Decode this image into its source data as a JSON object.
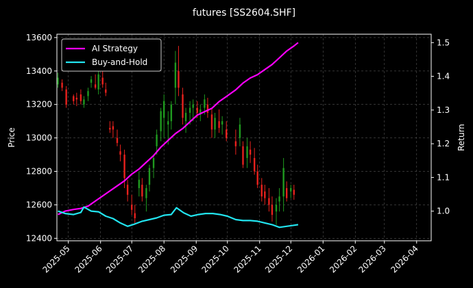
{
  "chart_data": {
    "type": "line",
    "title": "futures [SS2604.SHF]",
    "xlabel": "",
    "ylabel": "Price",
    "ylabel_right": "Return",
    "x_ticks": [
      "2025-05",
      "2025-06",
      "2025-07",
      "2025-08",
      "2025-09",
      "2025-10",
      "2025-11",
      "2025-12",
      "2026-01",
      "2026-02",
      "2026-03",
      "2026-04"
    ],
    "y_ticks_left": [
      "12400",
      "12600",
      "12800",
      "13000",
      "13200",
      "13400",
      "13600"
    ],
    "y_ticks_right": [
      "1.0",
      "1.1",
      "1.2",
      "1.3",
      "1.4",
      "1.5"
    ],
    "xlim": [
      "2025-04-20",
      "2026-04-15"
    ],
    "ylim_left": [
      12385,
      13620
    ],
    "ylim_right": [
      0.912,
      1.525
    ],
    "grid": true,
    "legend_position": "top-left",
    "colors": {
      "background": "#000000",
      "axes": "#ffffff",
      "grid": "#555555",
      "up": "#1f9a1f",
      "down": "#e8211d",
      "ai_strategy": "#ff00ff",
      "buy_and_hold": "#22e5f0"
    },
    "series": [
      {
        "name": "AI Strategy",
        "axis": "right",
        "points": [
          [
            "2025-04-21",
            0.99
          ],
          [
            "2025-04-28",
            1.0
          ],
          [
            "2025-05-06",
            1.005
          ],
          [
            "2025-05-13",
            1.008
          ],
          [
            "2025-05-20",
            1.015
          ],
          [
            "2025-05-27",
            1.03
          ],
          [
            "2025-06-03",
            1.045
          ],
          [
            "2025-06-10",
            1.06
          ],
          [
            "2025-06-17",
            1.075
          ],
          [
            "2025-06-24",
            1.09
          ],
          [
            "2025-07-01",
            1.11
          ],
          [
            "2025-07-08",
            1.125
          ],
          [
            "2025-07-15",
            1.145
          ],
          [
            "2025-07-22",
            1.165
          ],
          [
            "2025-07-29",
            1.19
          ],
          [
            "2025-08-05",
            1.21
          ],
          [
            "2025-08-12",
            1.23
          ],
          [
            "2025-08-19",
            1.245
          ],
          [
            "2025-08-26",
            1.265
          ],
          [
            "2025-09-02",
            1.285
          ],
          [
            "2025-09-09",
            1.295
          ],
          [
            "2025-09-16",
            1.305
          ],
          [
            "2025-09-23",
            1.325
          ],
          [
            "2025-09-30",
            1.34
          ],
          [
            "2025-10-09",
            1.36
          ],
          [
            "2025-10-16",
            1.38
          ],
          [
            "2025-10-23",
            1.395
          ],
          [
            "2025-10-30",
            1.405
          ],
          [
            "2025-11-06",
            1.42
          ],
          [
            "2025-11-13",
            1.435
          ],
          [
            "2025-11-20",
            1.455
          ],
          [
            "2025-11-27",
            1.475
          ],
          [
            "2025-12-04",
            1.49
          ],
          [
            "2025-12-08",
            1.5
          ]
        ]
      },
      {
        "name": "Buy-and-Hold",
        "axis": "right",
        "points": [
          [
            "2025-04-21",
            1.0
          ],
          [
            "2025-04-28",
            0.993
          ],
          [
            "2025-05-06",
            0.99
          ],
          [
            "2025-05-13",
            0.996
          ],
          [
            "2025-05-16",
            1.012
          ],
          [
            "2025-05-23",
            1.0
          ],
          [
            "2025-05-30",
            0.998
          ],
          [
            "2025-06-06",
            0.985
          ],
          [
            "2025-06-13",
            0.978
          ],
          [
            "2025-06-20",
            0.965
          ],
          [
            "2025-06-27",
            0.955
          ],
          [
            "2025-07-04",
            0.962
          ],
          [
            "2025-07-11",
            0.97
          ],
          [
            "2025-07-18",
            0.975
          ],
          [
            "2025-07-25",
            0.98
          ],
          [
            "2025-08-01",
            0.988
          ],
          [
            "2025-08-08",
            0.99
          ],
          [
            "2025-08-13",
            1.01
          ],
          [
            "2025-08-20",
            0.995
          ],
          [
            "2025-08-27",
            0.985
          ],
          [
            "2025-09-03",
            0.99
          ],
          [
            "2025-09-10",
            0.993
          ],
          [
            "2025-09-17",
            0.993
          ],
          [
            "2025-09-24",
            0.99
          ],
          [
            "2025-10-01",
            0.985
          ],
          [
            "2025-10-09",
            0.975
          ],
          [
            "2025-10-16",
            0.972
          ],
          [
            "2025-10-23",
            0.972
          ],
          [
            "2025-10-30",
            0.97
          ],
          [
            "2025-11-06",
            0.965
          ],
          [
            "2025-11-13",
            0.96
          ],
          [
            "2025-11-20",
            0.952
          ],
          [
            "2025-11-27",
            0.955
          ],
          [
            "2025-12-04",
            0.958
          ],
          [
            "2025-12-08",
            0.96
          ]
        ]
      }
    ],
    "candles": [
      [
        "2025-04-21",
        13320,
        13390,
        13300,
        13360
      ],
      [
        "2025-04-25",
        13330,
        13350,
        13280,
        13300
      ],
      [
        "2025-04-29",
        13290,
        13310,
        13180,
        13200
      ],
      [
        "2025-05-06",
        13250,
        13260,
        13200,
        13220
      ],
      [
        "2025-05-09",
        13240,
        13270,
        13190,
        13230
      ],
      [
        "2025-05-13",
        13260,
        13290,
        13200,
        13220
      ],
      [
        "2025-05-16",
        13200,
        13250,
        13180,
        13230
      ],
      [
        "2025-05-20",
        13250,
        13300,
        13220,
        13280
      ],
      [
        "2025-05-23",
        13330,
        13370,
        13300,
        13350
      ],
      [
        "2025-05-27",
        13320,
        13380,
        13290,
        13300
      ],
      [
        "2025-05-30",
        13290,
        13400,
        13260,
        13380
      ],
      [
        "2025-06-03",
        13360,
        13400,
        13300,
        13320
      ],
      [
        "2025-06-06",
        13290,
        13330,
        13250,
        13270
      ],
      [
        "2025-06-10",
        13060,
        13100,
        13030,
        13050
      ],
      [
        "2025-06-13",
        13070,
        13100,
        13000,
        13050
      ],
      [
        "2025-06-17",
        13000,
        13050,
        12950,
        12970
      ],
      [
        "2025-06-20",
        12920,
        12960,
        12860,
        12900
      ],
      [
        "2025-06-24",
        12900,
        12930,
        12700,
        12760
      ],
      [
        "2025-06-27",
        12720,
        12750,
        12620,
        12660
      ],
      [
        "2025-07-01",
        12600,
        12660,
        12540,
        12570
      ],
      [
        "2025-07-04",
        12550,
        12600,
        12490,
        12520
      ],
      [
        "2025-07-08",
        12700,
        12800,
        12650,
        12750
      ],
      [
        "2025-07-11",
        12720,
        12760,
        12620,
        12650
      ],
      [
        "2025-07-15",
        12640,
        12720,
        12560,
        12700
      ],
      [
        "2025-07-18",
        12720,
        12840,
        12680,
        12820
      ],
      [
        "2025-07-22",
        12820,
        12900,
        12760,
        12880
      ],
      [
        "2025-07-25",
        12950,
        13050,
        12900,
        13020
      ],
      [
        "2025-07-29",
        13040,
        13180,
        12980,
        13160
      ],
      [
        "2025-08-01",
        13120,
        13260,
        13000,
        13220
      ],
      [
        "2025-08-05",
        13080,
        13160,
        12960,
        13100
      ],
      [
        "2025-08-08",
        13100,
        13220,
        13050,
        13200
      ],
      [
        "2025-08-12",
        13300,
        13520,
        13200,
        13450
      ],
      [
        "2025-08-15",
        13400,
        13550,
        13250,
        13300
      ],
      [
        "2025-08-19",
        13260,
        13300,
        13080,
        13120
      ],
      [
        "2025-08-22",
        13100,
        13180,
        13030,
        13150
      ],
      [
        "2025-08-26",
        13150,
        13220,
        13080,
        13180
      ],
      [
        "2025-08-29",
        13180,
        13230,
        13100,
        13200
      ],
      [
        "2025-09-02",
        13180,
        13220,
        13120,
        13150
      ],
      [
        "2025-09-05",
        13140,
        13200,
        13100,
        13170
      ],
      [
        "2025-09-09",
        13180,
        13260,
        13140,
        13230
      ],
      [
        "2025-09-12",
        13200,
        13240,
        13120,
        13150
      ],
      [
        "2025-09-16",
        13140,
        13180,
        13000,
        13050
      ],
      [
        "2025-09-19",
        13050,
        13150,
        13000,
        13120
      ],
      [
        "2025-09-23",
        13100,
        13170,
        13030,
        13060
      ],
      [
        "2025-09-26",
        13080,
        13130,
        13020,
        13100
      ],
      [
        "2025-09-30",
        13050,
        13100,
        12980,
        13000
      ],
      [
        "2025-10-09",
        12980,
        13050,
        12900,
        12950
      ],
      [
        "2025-10-13",
        13000,
        13120,
        12950,
        13080
      ],
      [
        "2025-10-16",
        12950,
        12980,
        12820,
        12840
      ],
      [
        "2025-10-20",
        12880,
        13000,
        12820,
        12950
      ],
      [
        "2025-10-23",
        12930,
        12980,
        12850,
        12900
      ],
      [
        "2025-10-27",
        12880,
        12940,
        12780,
        12800
      ],
      [
        "2025-10-30",
        12800,
        12840,
        12700,
        12720
      ],
      [
        "2025-11-03",
        12720,
        12760,
        12620,
        12650
      ],
      [
        "2025-11-06",
        12680,
        12720,
        12600,
        12640
      ],
      [
        "2025-11-10",
        12640,
        12700,
        12560,
        12600
      ],
      [
        "2025-11-13",
        12600,
        12650,
        12500,
        12540
      ],
      [
        "2025-11-17",
        12560,
        12640,
        12480,
        12600
      ],
      [
        "2025-11-20",
        12620,
        12700,
        12560,
        12650
      ],
      [
        "2025-11-24",
        12650,
        12880,
        12560,
        12820
      ],
      [
        "2025-11-27",
        12700,
        12740,
        12620,
        12640
      ],
      [
        "2025-12-01",
        12680,
        12720,
        12640,
        12700
      ],
      [
        "2025-12-04",
        12690,
        12720,
        12630,
        12660
      ]
    ]
  }
}
